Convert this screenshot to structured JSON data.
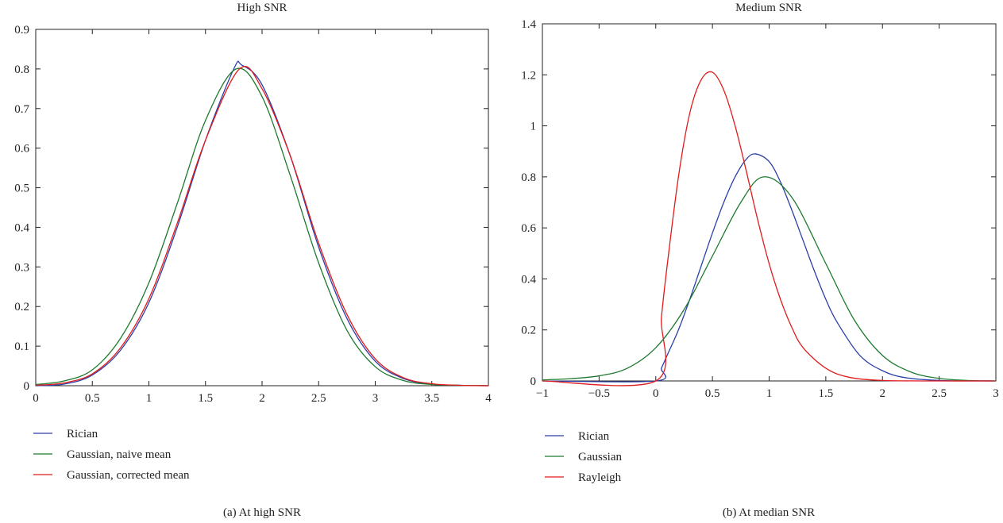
{
  "chart_data": [
    {
      "type": "line",
      "title": "High SNR",
      "caption": "(a)  At high SNR",
      "xlabel": "",
      "ylabel": "",
      "xlim": [
        0,
        4
      ],
      "ylim": [
        0,
        0.9
      ],
      "xticks": [
        0,
        0.5,
        1,
        1.5,
        2,
        2.5,
        3,
        3.5,
        4
      ],
      "xtick_labels": [
        "0",
        "0.5",
        "1",
        "1.5",
        "2",
        "2.5",
        "3",
        "3.5",
        "4"
      ],
      "yticks": [
        0,
        0.1,
        0.2,
        0.3,
        0.4,
        0.5,
        0.6,
        0.7,
        0.8,
        0.9
      ],
      "ytick_labels": [
        "0",
        "0.1",
        "0.2",
        "0.3",
        "0.4",
        "0.5",
        "0.6",
        "0.7",
        "0.8",
        "0.9"
      ],
      "grid": false,
      "legend_position": "below",
      "series": [
        {
          "name": "Rician",
          "color": "#2b3fa8",
          "x": [
            0,
            0.25,
            0.5,
            0.75,
            1,
            1.25,
            1.5,
            1.75,
            1.82,
            2,
            2.25,
            2.5,
            2.75,
            3,
            3.25,
            3.5,
            3.75,
            4
          ],
          "y": [
            0,
            0.004,
            0.027,
            0.09,
            0.21,
            0.4,
            0.62,
            0.8,
            0.81,
            0.76,
            0.58,
            0.35,
            0.17,
            0.062,
            0.018,
            0.004,
            0.001,
            0
          ]
        },
        {
          "name": "Gaussian, naive mean",
          "color": "#1d7a2e",
          "x": [
            0,
            0.25,
            0.5,
            0.75,
            1,
            1.25,
            1.5,
            1.77,
            2,
            2.25,
            2.5,
            2.75,
            3,
            3.25,
            3.5,
            3.75,
            4
          ],
          "y": [
            0.003,
            0.012,
            0.04,
            0.12,
            0.26,
            0.46,
            0.67,
            0.8,
            0.73,
            0.53,
            0.31,
            0.14,
            0.048,
            0.013,
            0.003,
            0.001,
            0
          ]
        },
        {
          "name": "Gaussian, corrected mean",
          "color": "#e01b1b",
          "x": [
            0,
            0.25,
            0.5,
            0.75,
            1,
            1.25,
            1.5,
            1.8,
            2,
            2.25,
            2.5,
            2.75,
            3,
            3.25,
            3.5,
            3.75,
            4
          ],
          "y": [
            0.001,
            0.007,
            0.03,
            0.096,
            0.22,
            0.41,
            0.62,
            0.8,
            0.75,
            0.58,
            0.36,
            0.18,
            0.068,
            0.02,
            0.005,
            0.001,
            0
          ]
        }
      ]
    },
    {
      "type": "line",
      "title": "Medium SNR",
      "caption": "(b)  At median SNR",
      "xlabel": "",
      "ylabel": "",
      "xlim": [
        -1,
        3
      ],
      "ylim": [
        0,
        1.4
      ],
      "xticks": [
        -1,
        -0.5,
        0,
        0.5,
        1,
        1.5,
        2,
        2.5,
        3
      ],
      "xtick_labels": [
        "−1",
        "−0.5",
        "0",
        "0.5",
        "1",
        "1.5",
        "2",
        "2.5",
        "3"
      ],
      "yticks": [
        0,
        0.2,
        0.4,
        0.6,
        0.8,
        1,
        1.2,
        1.4
      ],
      "ytick_labels": [
        "0",
        "0.2",
        "0.4",
        "0.6",
        "0.8",
        "1",
        "1.2",
        "1.4"
      ],
      "grid": false,
      "legend_position": "below",
      "series": [
        {
          "name": "Rician",
          "color": "#2b3fa8",
          "x": [
            -1,
            0,
            0.05,
            0.1,
            0.2,
            0.3,
            0.4,
            0.5,
            0.6,
            0.7,
            0.8,
            0.88,
            1,
            1.1,
            1.2,
            1.3,
            1.4,
            1.5,
            1.6,
            1.8,
            2,
            2.2,
            2.5,
            3
          ],
          "y": [
            0,
            0,
            0.05,
            0.1,
            0.2,
            0.32,
            0.45,
            0.58,
            0.7,
            0.8,
            0.87,
            0.89,
            0.86,
            0.78,
            0.67,
            0.55,
            0.43,
            0.32,
            0.23,
            0.1,
            0.04,
            0.013,
            0.002,
            0
          ]
        },
        {
          "name": "Gaussian",
          "color": "#1d7a2e",
          "x": [
            -1,
            -0.75,
            -0.5,
            -0.25,
            0,
            0.25,
            0.5,
            0.75,
            0.95,
            1.2,
            1.5,
            1.75,
            2,
            2.25,
            2.5,
            2.75,
            3
          ],
          "y": [
            0.004,
            0.009,
            0.02,
            0.05,
            0.13,
            0.28,
            0.49,
            0.7,
            0.8,
            0.72,
            0.46,
            0.24,
            0.1,
            0.035,
            0.01,
            0.002,
            0
          ]
        },
        {
          "name": "Rayleigh",
          "color": "#e01b1b",
          "x": [
            -1,
            0,
            0.05,
            0.1,
            0.2,
            0.3,
            0.4,
            0.5,
            0.6,
            0.7,
            0.8,
            0.9,
            1,
            1.1,
            1.2,
            1.3,
            1.5,
            1.7,
            2,
            2.5,
            3
          ],
          "y": [
            0,
            0,
            0.25,
            0.45,
            0.8,
            1.05,
            1.18,
            1.21,
            1.14,
            1.0,
            0.82,
            0.63,
            0.46,
            0.32,
            0.21,
            0.13,
            0.05,
            0.015,
            0.002,
            0,
            0
          ]
        }
      ]
    }
  ]
}
